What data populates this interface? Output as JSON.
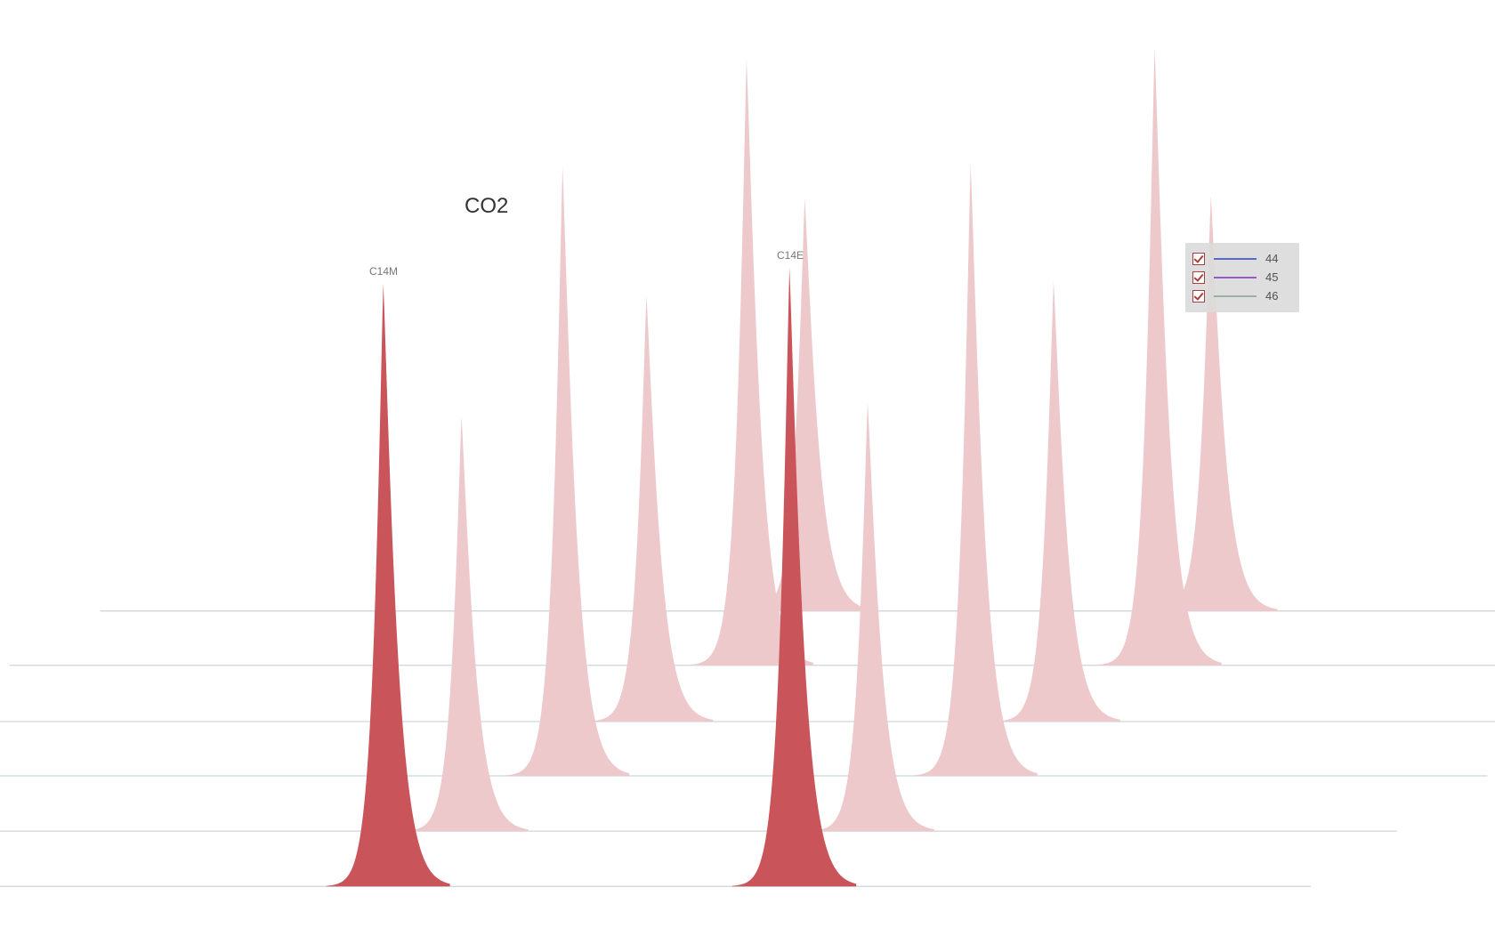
{
  "chart_data": {
    "type": "line",
    "title": "CO2",
    "style": "stacked waterfall chromatogram, filled peaks",
    "grid": false,
    "legend_position": "top-right",
    "legend": [
      {
        "label": "44",
        "color": "#4a5fc0",
        "checked": true
      },
      {
        "label": "45",
        "color": "#8a4fc0",
        "checked": true
      },
      {
        "label": "46",
        "color": "#8fae9c",
        "checked": true
      }
    ],
    "colors": {
      "highlight": "#c9555a",
      "faded": "#eec9cb",
      "baseline": "#cfd6d6"
    },
    "traces": [
      {
        "highlighted": false,
        "peak_heights": [
          433,
          436
        ]
      },
      {
        "highlighted": false,
        "peak_heights": [
          636,
          648
        ]
      },
      {
        "highlighted": false,
        "peak_heights": [
          447,
          462
        ]
      },
      {
        "highlighted": false,
        "peak_heights": [
          639,
          642
        ]
      },
      {
        "highlighted": false,
        "peak_heights": [
          435,
          450
        ]
      },
      {
        "highlighted": true,
        "peak_heights": [
          633,
          649
        ],
        "peak_labels": [
          "C14M",
          "C14E"
        ]
      }
    ]
  }
}
